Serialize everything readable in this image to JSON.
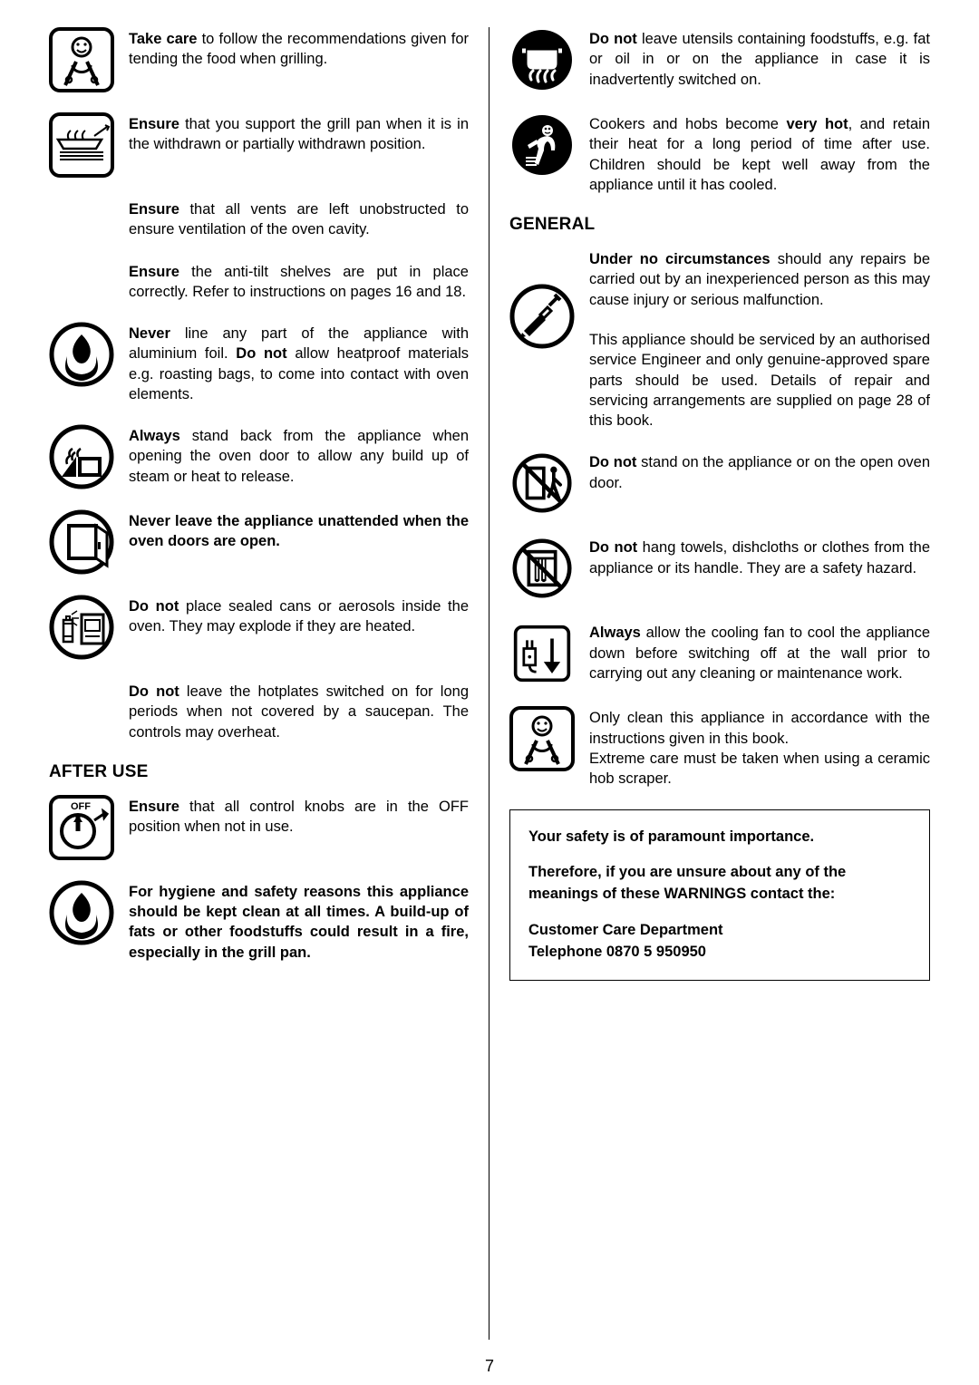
{
  "page_number": "7",
  "colors": {
    "text": "#000000",
    "bg": "#ffffff",
    "border": "#000000"
  },
  "left": {
    "items": [
      {
        "icon": "grill-smile-icon",
        "html": "<b>Take care</b> to follow the recommendations given for tending the food when grilling."
      },
      {
        "icon": "grill-pan-icon",
        "html": "<b>Ensure</b> that you support the grill pan when it is in the withdrawn or partially withdrawn position."
      },
      {
        "indent": true,
        "html": "<b>Ensure</b> that all vents are left unobstructed to ensure ventilation of the oven cavity."
      },
      {
        "indent": true,
        "html": "<b>Ensure</b> the anti-tilt shelves are put in place correctly. Refer to instructions on pages 16 and 18."
      },
      {
        "icon": "flame-icon",
        "html": "<b>Never</b> line any part of the appliance with aluminium foil. <b>Do not</b> allow heatproof materials e.g. roasting bags, to come into contact with oven elements."
      },
      {
        "icon": "steam-icon",
        "html": "<b>Always</b> stand back from the appliance when opening the oven door to allow any build up of steam or heat to release."
      },
      {
        "icon": "open-door-icon",
        "html": "<b>Never leave the appliance unattended when the oven doors are open.</b>"
      },
      {
        "icon": "aerosol-icon",
        "html": "<b>Do not</b> place sealed cans or aerosols inside the oven. They may explode if they are heated."
      },
      {
        "indent": true,
        "html": "<b>Do not</b> leave the hotplates switched on for long periods when not covered by a saucepan. The controls may overheat."
      }
    ],
    "after_use_heading": "AFTER USE",
    "after_items": [
      {
        "icon": "off-knob-icon",
        "html": "<b>Ensure</b> that all control knobs are in the OFF position when not in use."
      },
      {
        "icon": "flame-icon",
        "html": "<b>For hygiene and safety reasons this appliance should be kept clean at all times. A build-up of fats or other foodstuffs could result in a fire, especially in the grill pan.</b>"
      }
    ]
  },
  "right": {
    "top_items": [
      {
        "icon": "pot-fire-icon",
        "html": "<b>Do not</b> leave utensils containing foodstuffs, e.g. fat or oil in or on the appliance in case it is inadvertently switched on."
      },
      {
        "icon": "child-warning-icon",
        "html": "Cookers and hobs become <b>very hot</b>, and retain their heat for a long period of time after use. Children should be kept well away from the appliance until it has cooled."
      }
    ],
    "general_heading": "GENERAL",
    "general_items": [
      {
        "icon": "screwdriver-icon",
        "html": "<b>Under no circumstances</b> should any repairs be carried out by an inexperienced person as this may cause injury or serious malfunction.<br><br>This appliance should be serviced by an authorised service Engineer and only genuine-approved spare parts should be used. Details of repair and servicing arrangements are supplied on page 28 of this book."
      },
      {
        "icon": "no-stand-icon",
        "html": "<b>Do not</b> stand on the appliance or on the open oven door."
      },
      {
        "icon": "no-towel-icon",
        "html": "<b>Do not</b> hang towels, dishcloths or clothes from the appliance or its handle. They are a safety hazard."
      },
      {
        "icon": "fan-off-icon",
        "html": "<b>Always</b> allow the cooling fan to cool the appliance down before switching off at the wall prior to carrying out any cleaning or maintenance work."
      },
      {
        "icon": "grill-smile-icon",
        "html": "Only clean this appliance in accordance with the instructions given in this book.<br>Extreme care must be taken when using a ceramic hob scraper."
      }
    ],
    "safety_box": {
      "p1": "Your safety is of paramount importance.",
      "p2": "Therefore, if you are unsure about any of the meanings of these WARNINGS contact the:",
      "p3": "Customer Care Department",
      "p4": "Telephone 0870 5 950950"
    }
  }
}
